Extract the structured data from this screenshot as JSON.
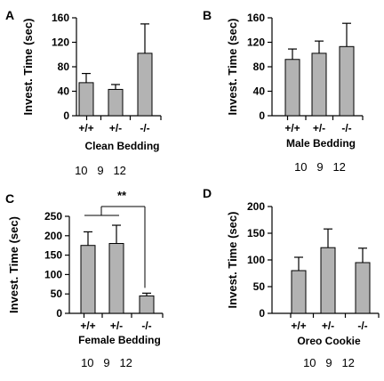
{
  "colors": {
    "bar_fill": "#b3b3b3",
    "stroke": "#000000"
  },
  "chart_data": [
    {
      "panel_letter": "A",
      "type": "bar",
      "categories": [
        "+/+",
        "+/-",
        "-/-"
      ],
      "values": [
        54,
        43,
        102
      ],
      "error": [
        15,
        8,
        48
      ],
      "ylabel": "Invest. Time (sec)",
      "xlabel": "Clean Bedding",
      "yticks": [
        0,
        40,
        80,
        120,
        160
      ],
      "ylim": [
        0,
        160
      ],
      "sample_sizes": "10   9   12",
      "significance": null
    },
    {
      "panel_letter": "B",
      "type": "bar",
      "categories": [
        "+/+",
        "+/-",
        "-/-"
      ],
      "values": [
        92,
        102,
        113
      ],
      "error": [
        17,
        20,
        38
      ],
      "ylabel": "Invest. Time (sec)",
      "xlabel": "Male Bedding",
      "yticks": [
        0,
        40,
        80,
        120,
        160
      ],
      "ylim": [
        0,
        160
      ],
      "sample_sizes": "10   9   12",
      "significance": null
    },
    {
      "panel_letter": "C",
      "type": "bar",
      "categories": [
        "+/+",
        "+/-",
        "-/-"
      ],
      "values": [
        175,
        180,
        45
      ],
      "error": [
        35,
        47,
        7
      ],
      "ylabel": "Invest. Time (sec)",
      "xlabel": "Female Bedding",
      "yticks": [
        0,
        50,
        100,
        150,
        200,
        250
      ],
      "ylim": [
        0,
        250
      ],
      "sample_sizes": "10   9   12",
      "significance": "**"
    },
    {
      "panel_letter": "D",
      "type": "bar",
      "categories": [
        "+/+",
        "+/-",
        "-/-"
      ],
      "values": [
        80,
        123,
        95
      ],
      "error": [
        25,
        35,
        27
      ],
      "ylabel": "Invest. Time (sec)",
      "xlabel": "Oreo Cookie",
      "yticks": [
        0,
        50,
        100,
        150,
        200
      ],
      "ylim": [
        0,
        200
      ],
      "sample_sizes": "10   9   12",
      "significance": null
    }
  ]
}
